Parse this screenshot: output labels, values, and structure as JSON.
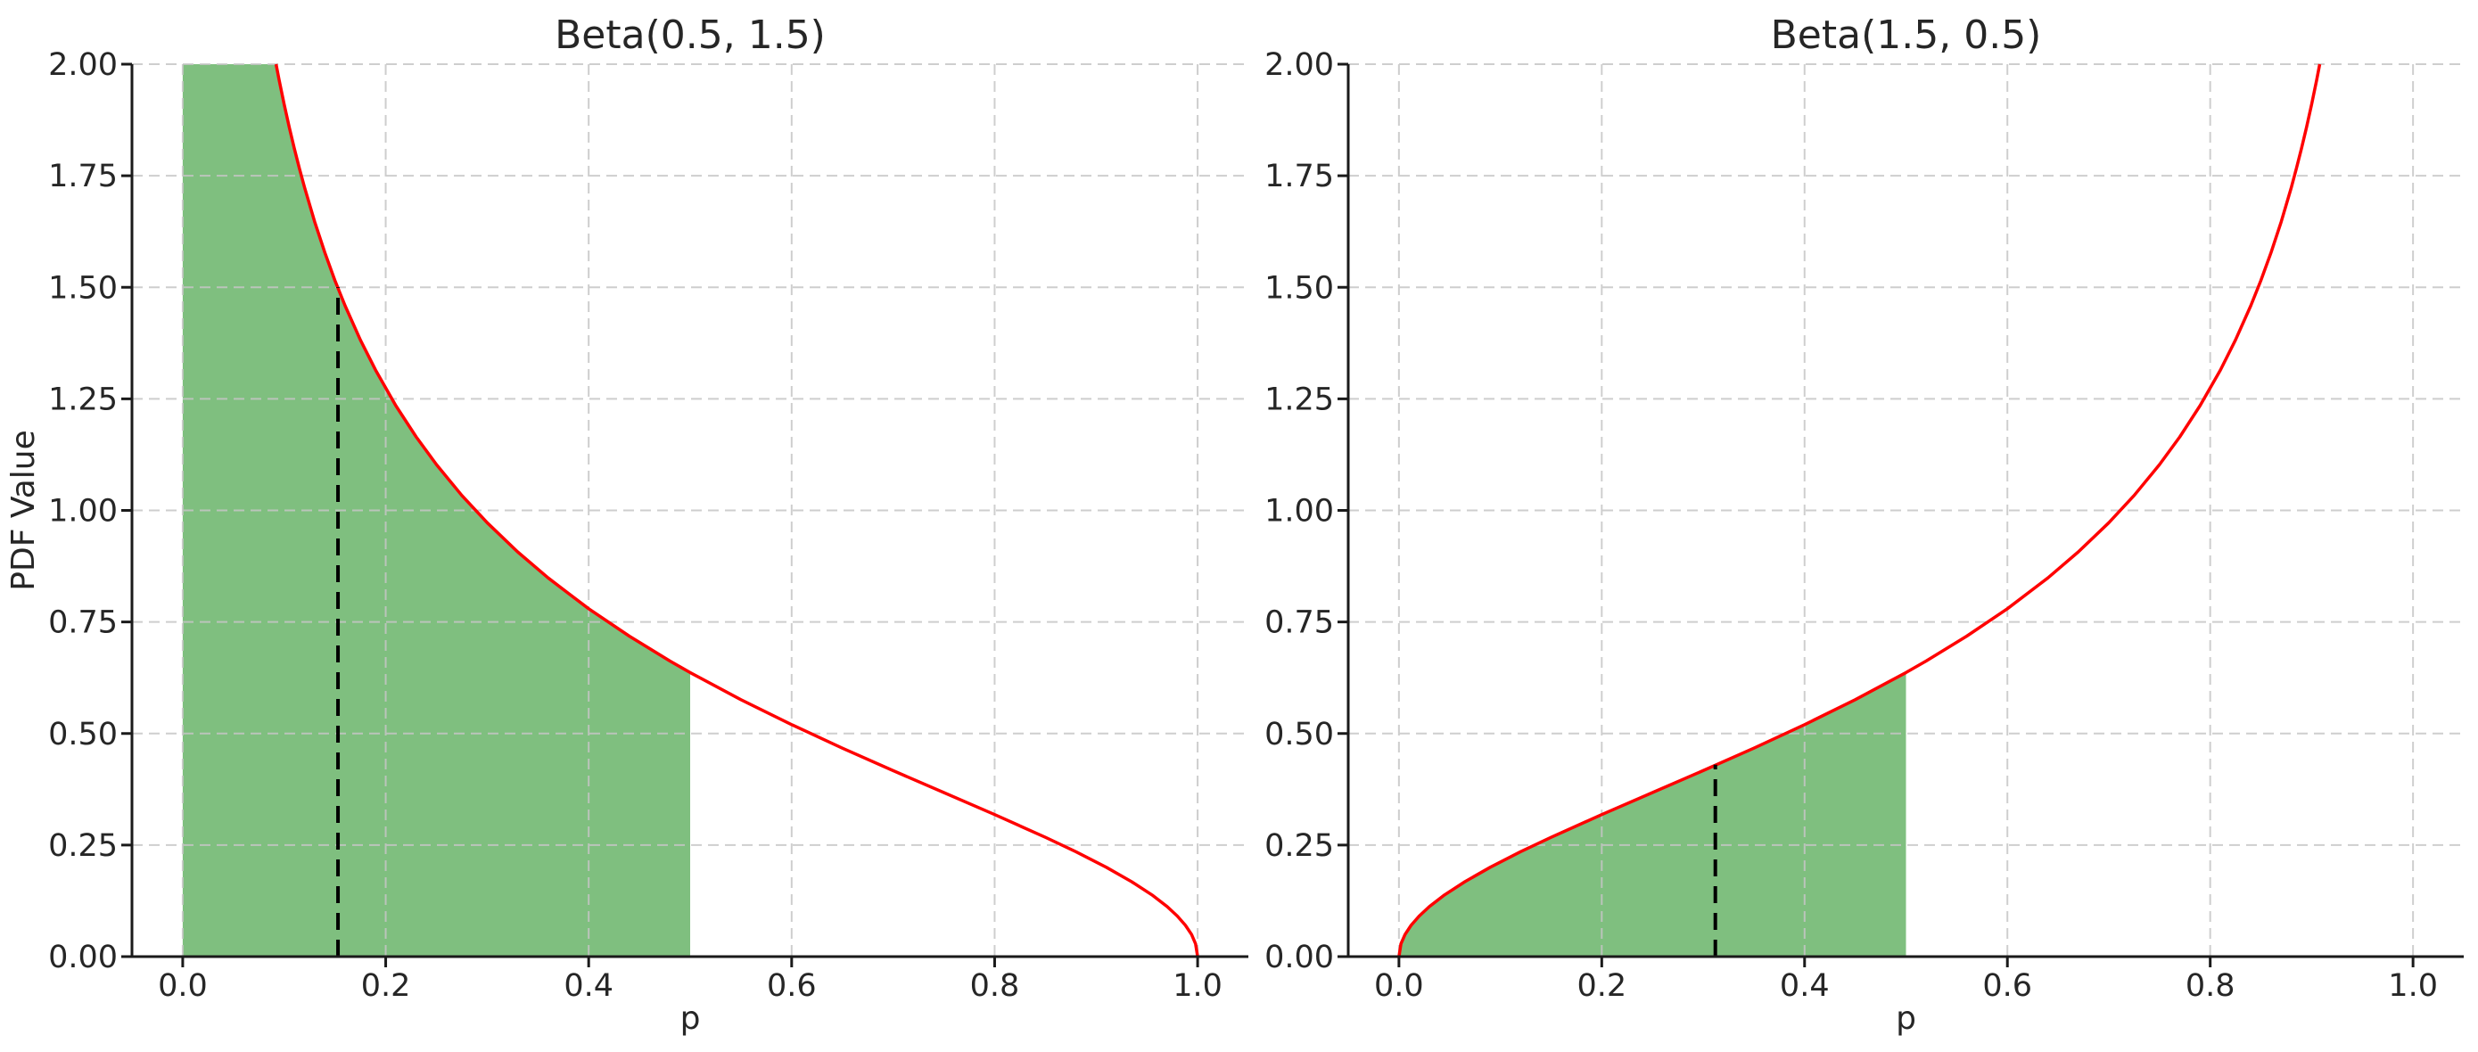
{
  "figure": {
    "background": "#ffffff",
    "text_color": "#262626",
    "spine_color": "#1a1a1a",
    "grid_color": "#c6c6c6"
  },
  "chart_data": [
    {
      "type": "line",
      "title": "Beta(0.5, 1.5)",
      "xlabel": "p",
      "ylabel": "PDF Value",
      "xlim": [
        -0.05,
        1.05
      ],
      "ylim": [
        0,
        2
      ],
      "grid": true,
      "legend": false,
      "xticks": [
        0.0,
        0.2,
        0.4,
        0.6,
        0.8,
        1.0
      ],
      "xtick_labels": [
        "0.0",
        "0.2",
        "0.4",
        "0.6",
        "0.8",
        "1.0"
      ],
      "yticks": [
        0,
        0.25,
        0.5,
        0.75,
        1.0,
        1.25,
        1.5,
        1.75,
        2.0
      ],
      "ytick_labels": [
        "0.00",
        "0.25",
        "0.50",
        "0.75",
        "1.00",
        "1.25",
        "1.50",
        "1.75",
        "2.00"
      ],
      "curve_color": "#ff0000",
      "fill_color": "#008000",
      "fill_opacity": 0.5,
      "marker_color": "#000000",
      "curve": [
        [
          0.092,
          2.0
        ],
        [
          0.095,
          1.9648
        ],
        [
          0.1,
          1.9099
        ],
        [
          0.105,
          1.8586
        ],
        [
          0.11,
          1.8108
        ],
        [
          0.115,
          1.766
        ],
        [
          0.12,
          1.724
        ],
        [
          0.13,
          1.6468
        ],
        [
          0.14,
          1.5779
        ],
        [
          0.15,
          1.5153
        ],
        [
          0.16,
          1.4587
        ],
        [
          0.175,
          1.3823
        ],
        [
          0.19,
          1.3145
        ],
        [
          0.21,
          1.2348
        ],
        [
          0.23,
          1.1648
        ],
        [
          0.25,
          1.1027
        ],
        [
          0.275,
          1.0336
        ],
        [
          0.3,
          0.9724
        ],
        [
          0.33,
          0.9071
        ],
        [
          0.36,
          0.8488
        ],
        [
          0.4,
          0.7797
        ],
        [
          0.44,
          0.7182
        ],
        [
          0.48,
          0.6626
        ],
        [
          0.5,
          0.6366
        ],
        [
          0.55,
          0.5758
        ],
        [
          0.6,
          0.5198
        ],
        [
          0.65,
          0.4671
        ],
        [
          0.7,
          0.4168
        ],
        [
          0.75,
          0.3676
        ],
        [
          0.8,
          0.3183
        ],
        [
          0.85,
          0.2674
        ],
        [
          0.88,
          0.2351
        ],
        [
          0.91,
          0.2002
        ],
        [
          0.935,
          0.1679
        ],
        [
          0.955,
          0.1382
        ],
        [
          0.97,
          0.112
        ],
        [
          0.98,
          0.0909
        ],
        [
          0.988,
          0.0702
        ],
        [
          0.994,
          0.0495
        ],
        [
          0.998,
          0.0285
        ],
        [
          1.0,
          0.0
        ]
      ],
      "shaded_region": {
        "x_start": 0.0,
        "x_end": 0.5
      },
      "dashed_marker": {
        "x": 0.153,
        "y_top": 1.5
      }
    },
    {
      "type": "line",
      "title": "Beta(1.5, 0.5)",
      "xlabel": "p",
      "ylabel": "",
      "xlim": [
        -0.05,
        1.05
      ],
      "ylim": [
        0,
        2
      ],
      "grid": true,
      "legend": false,
      "xticks": [
        0.0,
        0.2,
        0.4,
        0.6,
        0.8,
        1.0
      ],
      "xtick_labels": [
        "0.0",
        "0.2",
        "0.4",
        "0.6",
        "0.8",
        "1.0"
      ],
      "yticks": [
        0,
        0.25,
        0.5,
        0.75,
        1.0,
        1.25,
        1.5,
        1.75,
        2.0
      ],
      "ytick_labels": [
        "0.00",
        "0.25",
        "0.50",
        "0.75",
        "1.00",
        "1.25",
        "1.50",
        "1.75",
        "2.00"
      ],
      "curve_color": "#ff0000",
      "fill_color": "#008000",
      "fill_opacity": 0.5,
      "marker_color": "#000000",
      "curve": [
        [
          0.0,
          0.0
        ],
        [
          0.002,
          0.0285
        ],
        [
          0.006,
          0.0495
        ],
        [
          0.012,
          0.0702
        ],
        [
          0.02,
          0.0909
        ],
        [
          0.03,
          0.112
        ],
        [
          0.045,
          0.1382
        ],
        [
          0.065,
          0.1679
        ],
        [
          0.09,
          0.2002
        ],
        [
          0.12,
          0.2351
        ],
        [
          0.15,
          0.2674
        ],
        [
          0.2,
          0.3183
        ],
        [
          0.25,
          0.3676
        ],
        [
          0.3,
          0.4168
        ],
        [
          0.35,
          0.4671
        ],
        [
          0.4,
          0.5198
        ],
        [
          0.45,
          0.5758
        ],
        [
          0.5,
          0.6366
        ],
        [
          0.52,
          0.6626
        ],
        [
          0.56,
          0.7182
        ],
        [
          0.6,
          0.7797
        ],
        [
          0.64,
          0.8488
        ],
        [
          0.67,
          0.9071
        ],
        [
          0.7,
          0.9724
        ],
        [
          0.725,
          1.0336
        ],
        [
          0.75,
          1.1027
        ],
        [
          0.77,
          1.1648
        ],
        [
          0.79,
          1.2348
        ],
        [
          0.81,
          1.3145
        ],
        [
          0.825,
          1.3823
        ],
        [
          0.84,
          1.4587
        ],
        [
          0.85,
          1.5153
        ],
        [
          0.86,
          1.5779
        ],
        [
          0.87,
          1.6468
        ],
        [
          0.88,
          1.724
        ],
        [
          0.885,
          1.766
        ],
        [
          0.89,
          1.8108
        ],
        [
          0.895,
          1.8586
        ],
        [
          0.9,
          1.9099
        ],
        [
          0.905,
          1.9648
        ],
        [
          0.908,
          2.0
        ]
      ],
      "shaded_region": {
        "x_start": 0.0,
        "x_end": 0.5
      },
      "dashed_marker": {
        "x": 0.312,
        "y_top": 0.43
      }
    }
  ]
}
